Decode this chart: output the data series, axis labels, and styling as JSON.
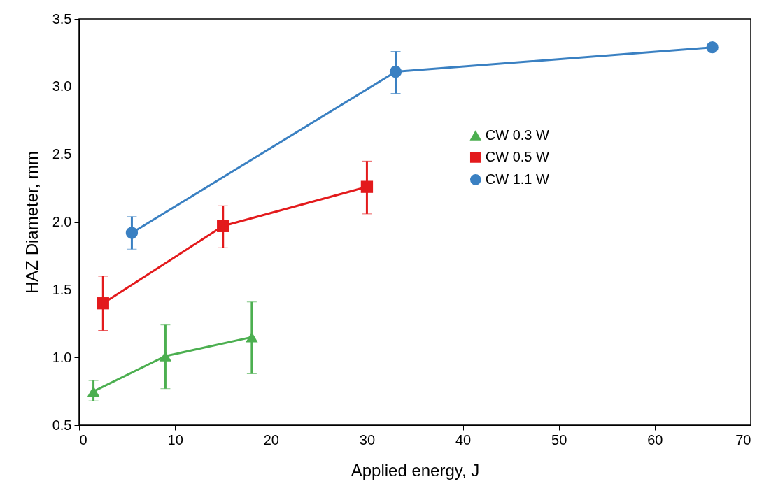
{
  "chart_data": {
    "type": "line",
    "xlabel": "Applied energy, J",
    "ylabel": "HAZ Diameter, mm",
    "xlim": [
      0,
      70
    ],
    "xticks": [
      0,
      10,
      20,
      30,
      40,
      50,
      60,
      70
    ],
    "ylim": [
      0.5,
      3.5
    ],
    "yticks": [
      {
        "value": 0.5,
        "label": "0.5"
      },
      {
        "value": 1,
        "label": "1.0"
      },
      {
        "value": 1.5,
        "label": "1.5"
      },
      {
        "value": 2,
        "label": "2.0"
      },
      {
        "value": 2.5,
        "label": "2.5"
      },
      {
        "value": 3,
        "label": "3.0"
      },
      {
        "value": 3.5,
        "label": "3.5"
      }
    ],
    "grid": false,
    "legend": "right",
    "line_style": "solid",
    "series": [
      {
        "name": "CW 0.3 W",
        "color": "#4caf50",
        "marker": "triangle",
        "x": [
          1.5,
          9,
          18
        ],
        "values": [
          0.75,
          1.01,
          1.15
        ],
        "errors": [
          [
            0.68,
            0.83
          ],
          [
            0.77,
            1.24
          ],
          [
            0.88,
            1.41
          ]
        ]
      },
      {
        "name": "CW 0.5 W",
        "color": "#e31a1c",
        "marker": "square",
        "x": [
          2.5,
          15,
          30
        ],
        "values": [
          1.4,
          1.97,
          2.26
        ],
        "errors": [
          [
            1.2,
            1.6
          ],
          [
            1.81,
            2.12
          ],
          [
            2.06,
            2.45
          ]
        ]
      },
      {
        "name": "CW 1.1 W",
        "color": "#3a80c2",
        "marker": "circle",
        "x": [
          5.5,
          33,
          66
        ],
        "values": [
          1.92,
          3.11,
          3.29
        ],
        "errors": [
          [
            1.8,
            2.04
          ],
          [
            2.95,
            3.26
          ],
          null
        ]
      }
    ]
  }
}
